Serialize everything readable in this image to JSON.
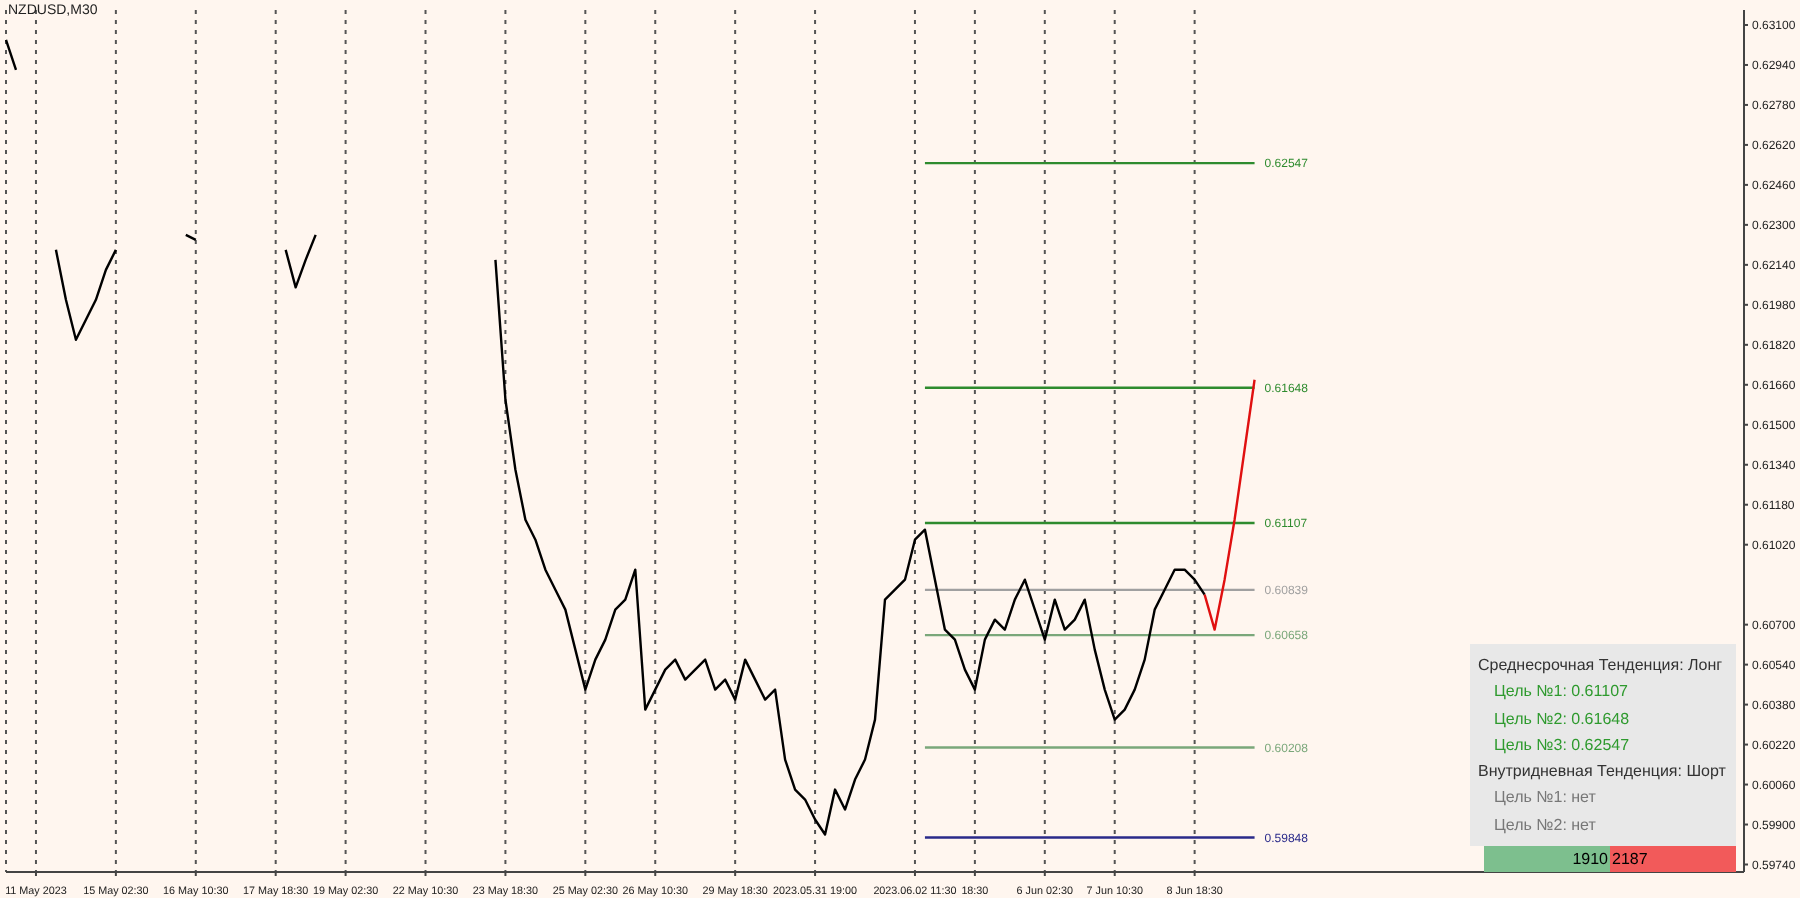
{
  "chart_data": {
    "type": "line",
    "title": "NZDUSD,M30",
    "categories": [
      null,
      null,
      null,
      "11 May 2023",
      null,
      null,
      null,
      null,
      null,
      null,
      null,
      "15 May 02:30",
      null,
      null,
      null,
      null,
      null,
      null,
      null,
      "16 May 10:30",
      null,
      null,
      null,
      null,
      null,
      null,
      null,
      "17 May 18:30",
      null,
      null,
      null,
      null,
      null,
      null,
      "19 May 02:30",
      null,
      null,
      null,
      null,
      null,
      null,
      null,
      "22 May 10:30",
      null,
      null,
      null,
      null,
      null,
      null,
      null,
      "23 May 18:30",
      null,
      null,
      null,
      null,
      null,
      null,
      null,
      "25 May 02:30",
      null,
      null,
      null,
      null,
      null,
      null,
      "26 May 10:30",
      null,
      null,
      null,
      null,
      null,
      null,
      null,
      "29 May 18:30",
      null,
      null,
      null,
      null,
      null,
      null,
      null,
      "2023.05.31 19:00",
      null,
      null,
      null,
      null,
      null,
      null,
      null,
      null,
      null,
      "2023.06.02 11:30",
      null,
      null,
      null,
      null,
      null,
      "18:30",
      null,
      null,
      null,
      null,
      null,
      null,
      "6 Jun 02:30",
      null,
      null,
      null,
      null,
      null,
      null,
      "7 Jun 10:30",
      null,
      null,
      null,
      null,
      null,
      null,
      null,
      "8 Jun 18:30",
      null,
      null,
      null,
      null,
      null,
      null,
      null,
      null,
      null,
      null,
      null,
      null,
      null,
      null,
      null,
      null,
      null,
      null,
      null,
      null,
      null,
      null,
      null,
      null,
      null,
      null,
      null,
      null,
      null,
      null,
      null,
      null,
      null,
      null,
      null,
      null,
      null,
      null,
      null,
      null,
      null,
      null,
      null,
      null,
      null,
      null,
      null,
      null,
      null,
      null,
      null,
      null,
      null,
      null,
      null
    ],
    "series": [
      {
        "color": "#000000",
        "values": [
          0.6304,
          0.6292,
          null,
          null,
          null,
          0.622,
          0.62,
          0.6184,
          0.6192,
          0.62,
          0.6212,
          0.622,
          null,
          null,
          null,
          null,
          null,
          null,
          0.6226,
          0.6224,
          null,
          null,
          null,
          null,
          null,
          null,
          null,
          null,
          0.622,
          0.6205,
          0.6216,
          0.6226,
          null,
          null,
          null,
          null,
          null,
          null,
          null,
          null,
          null,
          null,
          null,
          null,
          null,
          null,
          null,
          null,
          null,
          0.6216,
          0.616,
          0.6132,
          0.6112,
          0.6104,
          0.6092,
          0.6084,
          0.6076,
          0.606,
          0.6044,
          0.6056,
          0.6064,
          0.6076,
          0.608,
          0.6092,
          0.6036,
          0.6044,
          0.6052,
          0.6056,
          0.6048,
          0.6052,
          0.6056,
          0.6044,
          0.6048,
          0.604,
          0.6056,
          0.6048,
          0.604,
          0.6044,
          0.6016,
          0.6004,
          0.6,
          0.5992,
          0.5986,
          0.6004,
          0.5996,
          0.6008,
          0.6016,
          0.6032,
          0.608,
          0.6084,
          0.6088,
          0.6104,
          0.6108,
          0.6088,
          0.6068,
          0.6064,
          0.6052,
          0.6044,
          0.6064,
          0.6072,
          0.6068,
          0.608,
          0.6088,
          0.6076,
          0.6064,
          0.608,
          0.6068,
          0.6072,
          0.608,
          0.606,
          0.6044,
          0.6032,
          0.6036,
          0.6044,
          0.6056,
          0.6076,
          0.6084,
          0.6092,
          0.6092,
          0.6088,
          0.6082,
          null,
          null,
          null,
          null,
          null,
          null,
          null,
          null,
          null,
          null,
          null,
          null,
          null,
          null,
          null,
          null,
          null,
          null,
          null,
          null,
          null,
          null,
          null,
          null,
          null,
          null,
          null,
          null,
          null,
          null,
          null,
          null,
          null,
          null,
          null,
          null,
          null,
          null,
          null,
          null,
          null,
          null,
          null,
          null,
          null,
          null,
          null,
          null,
          null,
          null,
          null,
          null,
          null,
          null
        ]
      },
      {
        "color": "#e01010",
        "values": [
          null,
          null,
          null,
          null,
          null,
          null,
          null,
          null,
          null,
          null,
          null,
          null,
          null,
          null,
          null,
          null,
          null,
          null,
          null,
          null,
          null,
          null,
          null,
          null,
          null,
          null,
          null,
          null,
          null,
          null,
          null,
          null,
          null,
          null,
          null,
          null,
          null,
          null,
          null,
          null,
          null,
          null,
          null,
          null,
          null,
          null,
          null,
          null,
          null,
          null,
          null,
          null,
          null,
          null,
          null,
          null,
          null,
          null,
          null,
          null,
          null,
          null,
          null,
          null,
          null,
          null,
          null,
          null,
          null,
          null,
          null,
          null,
          null,
          null,
          null,
          null,
          null,
          null,
          null,
          null,
          null,
          null,
          null,
          null,
          null,
          null,
          null,
          null,
          null,
          null,
          null,
          null,
          null,
          null,
          null,
          null,
          null,
          null,
          null,
          null,
          null,
          null,
          null,
          null,
          null,
          null,
          null,
          null,
          null,
          null,
          null,
          null,
          null,
          null,
          null,
          null,
          null,
          null,
          null,
          null,
          0.6082,
          0.6068,
          0.6088,
          0.6112,
          0.614,
          0.6168,
          null,
          null,
          null,
          null,
          null,
          null,
          null,
          null,
          null,
          null,
          null,
          null,
          null,
          null,
          null,
          null,
          null,
          null,
          null,
          null,
          null,
          null,
          null,
          null,
          null,
          null,
          null,
          null,
          null,
          null,
          null,
          null,
          null,
          null,
          null,
          null,
          null,
          null,
          null,
          null,
          null,
          null,
          null,
          null,
          null,
          null,
          null,
          null,
          null
        ]
      }
    ],
    "ylim": [
      0.5971,
      0.6316
    ],
    "yticks": [
      {
        "value": 0.631,
        "label": "0.63100"
      },
      {
        "value": 0.6294,
        "label": "0.62940"
      },
      {
        "value": 0.6278,
        "label": "0.62780"
      },
      {
        "value": 0.6262,
        "label": "0.62620"
      },
      {
        "value": 0.6246,
        "label": "0.62460"
      },
      {
        "value": 0.623,
        "label": "0.62300"
      },
      {
        "value": 0.6214,
        "label": "0.62140"
      },
      {
        "value": 0.6198,
        "label": "0.61980"
      },
      {
        "value": 0.6182,
        "label": "0.61820"
      },
      {
        "value": 0.6166,
        "label": "0.61660"
      },
      {
        "value": 0.615,
        "label": "0.61500"
      },
      {
        "value": 0.6134,
        "label": "0.61340"
      },
      {
        "value": 0.6118,
        "label": "0.61180"
      },
      {
        "value": 0.6102,
        "label": "0.61020"
      },
      {
        "value": 0.607,
        "label": "0.60700"
      },
      {
        "value": 0.6054,
        "label": "0.60540"
      },
      {
        "value": 0.6038,
        "label": "0.60380"
      },
      {
        "value": 0.6022,
        "label": "0.60220"
      },
      {
        "value": 0.6006,
        "label": "0.60060"
      },
      {
        "value": 0.599,
        "label": "0.59900"
      },
      {
        "value": 0.5974,
        "label": "0.59740"
      }
    ],
    "ref_lines": [
      {
        "axis": "y",
        "value": 0.62547,
        "label": "0.62547",
        "color": "#2e8b2e"
      },
      {
        "axis": "y",
        "value": 0.61648,
        "label": "0.61648",
        "color": "#2e8b2e"
      },
      {
        "axis": "y",
        "value": 0.61107,
        "label": "0.61107",
        "color": "#2e8b2e"
      },
      {
        "axis": "y",
        "value": 0.60839,
        "label": "0.60839",
        "color": "#a0a0a0"
      },
      {
        "axis": "y",
        "value": 0.60658,
        "label": "0.60658",
        "color": "#7aa77a"
      },
      {
        "axis": "y",
        "value": 0.60208,
        "label": "0.60208",
        "color": "#7aa77a"
      },
      {
        "axis": "y",
        "value": 0.59848,
        "label": "0.59848",
        "color": "#2a2a8a"
      }
    ],
    "grid": "x",
    "annotations": [
      "Среднесрочная Тенденция: Лонг",
      "Цель №1: 0.61107",
      "Цель №2: 0.61648",
      "Цель №3: 0.62547",
      "Внутридневная Тенденция: Шорт",
      "Цель №1: нет",
      "Цель №2: нет",
      "1910",
      "2187"
    ]
  }
}
